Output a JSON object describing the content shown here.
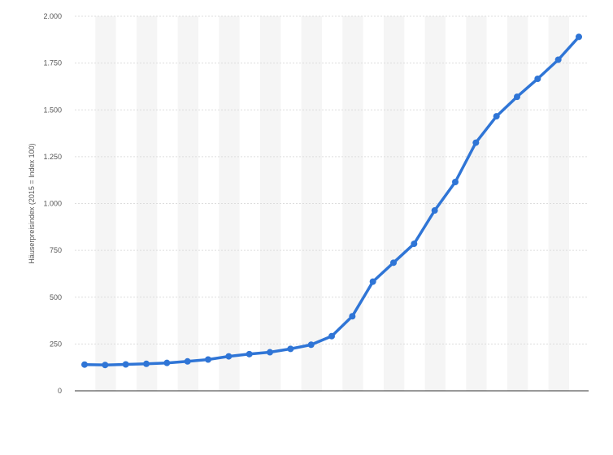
{
  "chart_data": {
    "type": "line",
    "ylabel": "Häuserpreisindex (2015 = Index 100)",
    "xlabel": "",
    "ylim": [
      0,
      2000
    ],
    "y_ticks": [
      {
        "value": 0,
        "label": "0"
      },
      {
        "value": 250,
        "label": "250"
      },
      {
        "value": 500,
        "label": "500"
      },
      {
        "value": 750,
        "label": "750"
      },
      {
        "value": 1000,
        "label": "1.000"
      },
      {
        "value": 1250,
        "label": "1.250"
      },
      {
        "value": 1500,
        "label": "1.500"
      },
      {
        "value": 1750,
        "label": "1.750"
      },
      {
        "value": 2000,
        "label": "2.000"
      }
    ],
    "grid": true,
    "legend": "none",
    "colors": {
      "line": "#2f75d6",
      "grid": "#dddddd",
      "band": "#f5f5f5",
      "axis": "#333333",
      "text": "#555555"
    },
    "series": [
      {
        "values": [
          140,
          138,
          141,
          144,
          149,
          157,
          167,
          184,
          196,
          206,
          224,
          246,
          292,
          398,
          583,
          684,
          785,
          963,
          1115,
          1325,
          1466,
          1570,
          1666,
          1768,
          1890
        ]
      }
    ]
  }
}
